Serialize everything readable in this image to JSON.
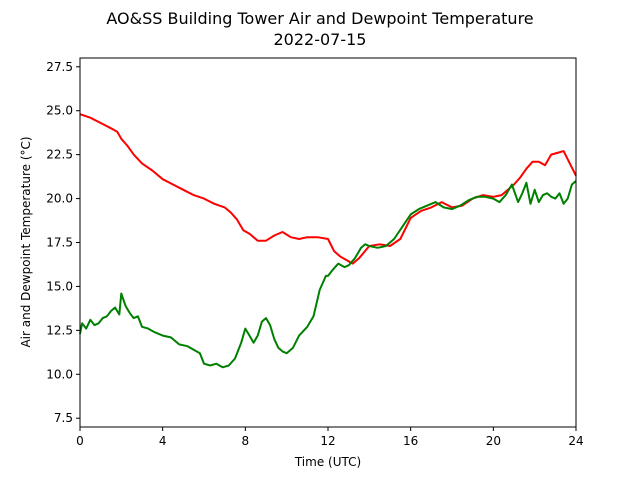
{
  "chart_data": {
    "type": "line",
    "title": "AO&SS Building Tower Air and Dewpoint Temperature",
    "subtitle": "2022-07-15",
    "xlabel": "Time (UTC)",
    "ylabel": "Air and Dewpoint Temperature (°C)",
    "xlim": [
      0,
      24
    ],
    "ylim": [
      7.0,
      28.0
    ],
    "xticks": [
      0,
      4,
      8,
      12,
      16,
      20,
      24
    ],
    "yticks": [
      7.5,
      10.0,
      12.5,
      15.0,
      17.5,
      20.0,
      22.5,
      25.0,
      27.5
    ],
    "grid": false,
    "series": [
      {
        "color": "#ff0000",
        "x": [
          0,
          0.5,
          1,
          1.5,
          1.8,
          2.0,
          2.3,
          2.6,
          3.0,
          3.5,
          4.0,
          4.5,
          5.0,
          5.5,
          6.0,
          6.5,
          7.0,
          7.3,
          7.6,
          7.9,
          8.2,
          8.6,
          9.0,
          9.4,
          9.8,
          10.2,
          10.6,
          11.0,
          11.5,
          12.0,
          12.3,
          12.6,
          12.9,
          13.2,
          13.5,
          14.0,
          14.5,
          15.0,
          15.5,
          16.0,
          16.5,
          17.0,
          17.5,
          18.0,
          18.5,
          19.0,
          19.5,
          20.0,
          20.4,
          20.8,
          21.0,
          21.3,
          21.6,
          21.9,
          22.2,
          22.5,
          22.8,
          23.1,
          23.4,
          23.7,
          24.0
        ],
        "y": [
          24.8,
          24.6,
          24.3,
          24.0,
          23.8,
          23.4,
          23.0,
          22.5,
          22.0,
          21.6,
          21.1,
          20.8,
          20.5,
          20.2,
          20.0,
          19.7,
          19.5,
          19.2,
          18.8,
          18.2,
          18.0,
          17.6,
          17.6,
          17.9,
          18.1,
          17.8,
          17.7,
          17.8,
          17.8,
          17.7,
          17.0,
          16.7,
          16.5,
          16.3,
          16.6,
          17.3,
          17.4,
          17.3,
          17.7,
          18.9,
          19.3,
          19.5,
          19.8,
          19.5,
          19.6,
          20.0,
          20.2,
          20.1,
          20.2,
          20.6,
          20.8,
          21.2,
          21.7,
          22.1,
          22.1,
          21.9,
          22.5,
          22.6,
          22.7,
          22.0,
          21.3
        ]
      },
      {
        "color": "#008000",
        "x": [
          0,
          0.1,
          0.3,
          0.5,
          0.7,
          0.9,
          1.1,
          1.3,
          1.5,
          1.7,
          1.9,
          2.0,
          2.2,
          2.4,
          2.6,
          2.8,
          3.0,
          3.3,
          3.6,
          4.0,
          4.4,
          4.8,
          5.2,
          5.5,
          5.8,
          6.0,
          6.3,
          6.6,
          6.9,
          7.2,
          7.5,
          7.8,
          8.0,
          8.2,
          8.4,
          8.6,
          8.8,
          9.0,
          9.2,
          9.4,
          9.6,
          9.8,
          10.0,
          10.3,
          10.6,
          11.0,
          11.3,
          11.6,
          11.9,
          12.0,
          12.2,
          12.5,
          12.8,
          13.0,
          13.3,
          13.6,
          13.8,
          14.0,
          14.4,
          14.8,
          15.2,
          15.6,
          16.0,
          16.4,
          16.8,
          17.2,
          17.6,
          18.0,
          18.4,
          18.8,
          19.2,
          19.6,
          20.0,
          20.3,
          20.6,
          20.9,
          21.2,
          21.4,
          21.6,
          21.8,
          22.0,
          22.2,
          22.4,
          22.6,
          22.8,
          23.0,
          23.2,
          23.4,
          23.6,
          23.8,
          24.0
        ],
        "y": [
          12.3,
          12.9,
          12.6,
          13.1,
          12.8,
          12.9,
          13.2,
          13.3,
          13.6,
          13.8,
          13.4,
          14.6,
          13.9,
          13.5,
          13.2,
          13.3,
          12.7,
          12.6,
          12.4,
          12.2,
          12.1,
          11.7,
          11.6,
          11.4,
          11.2,
          10.6,
          10.5,
          10.6,
          10.4,
          10.5,
          10.9,
          11.8,
          12.6,
          12.2,
          11.8,
          12.2,
          13.0,
          13.2,
          12.8,
          12.0,
          11.5,
          11.3,
          11.2,
          11.5,
          12.2,
          12.7,
          13.3,
          14.8,
          15.6,
          15.6,
          15.9,
          16.3,
          16.1,
          16.2,
          16.6,
          17.2,
          17.4,
          17.3,
          17.2,
          17.3,
          17.7,
          18.4,
          19.1,
          19.4,
          19.6,
          19.8,
          19.5,
          19.4,
          19.6,
          19.9,
          20.1,
          20.1,
          20.0,
          19.8,
          20.2,
          20.8,
          19.8,
          20.3,
          20.9,
          19.7,
          20.5,
          19.8,
          20.2,
          20.3,
          20.1,
          20.0,
          20.3,
          19.7,
          20.0,
          20.8,
          21.0
        ]
      }
    ]
  }
}
